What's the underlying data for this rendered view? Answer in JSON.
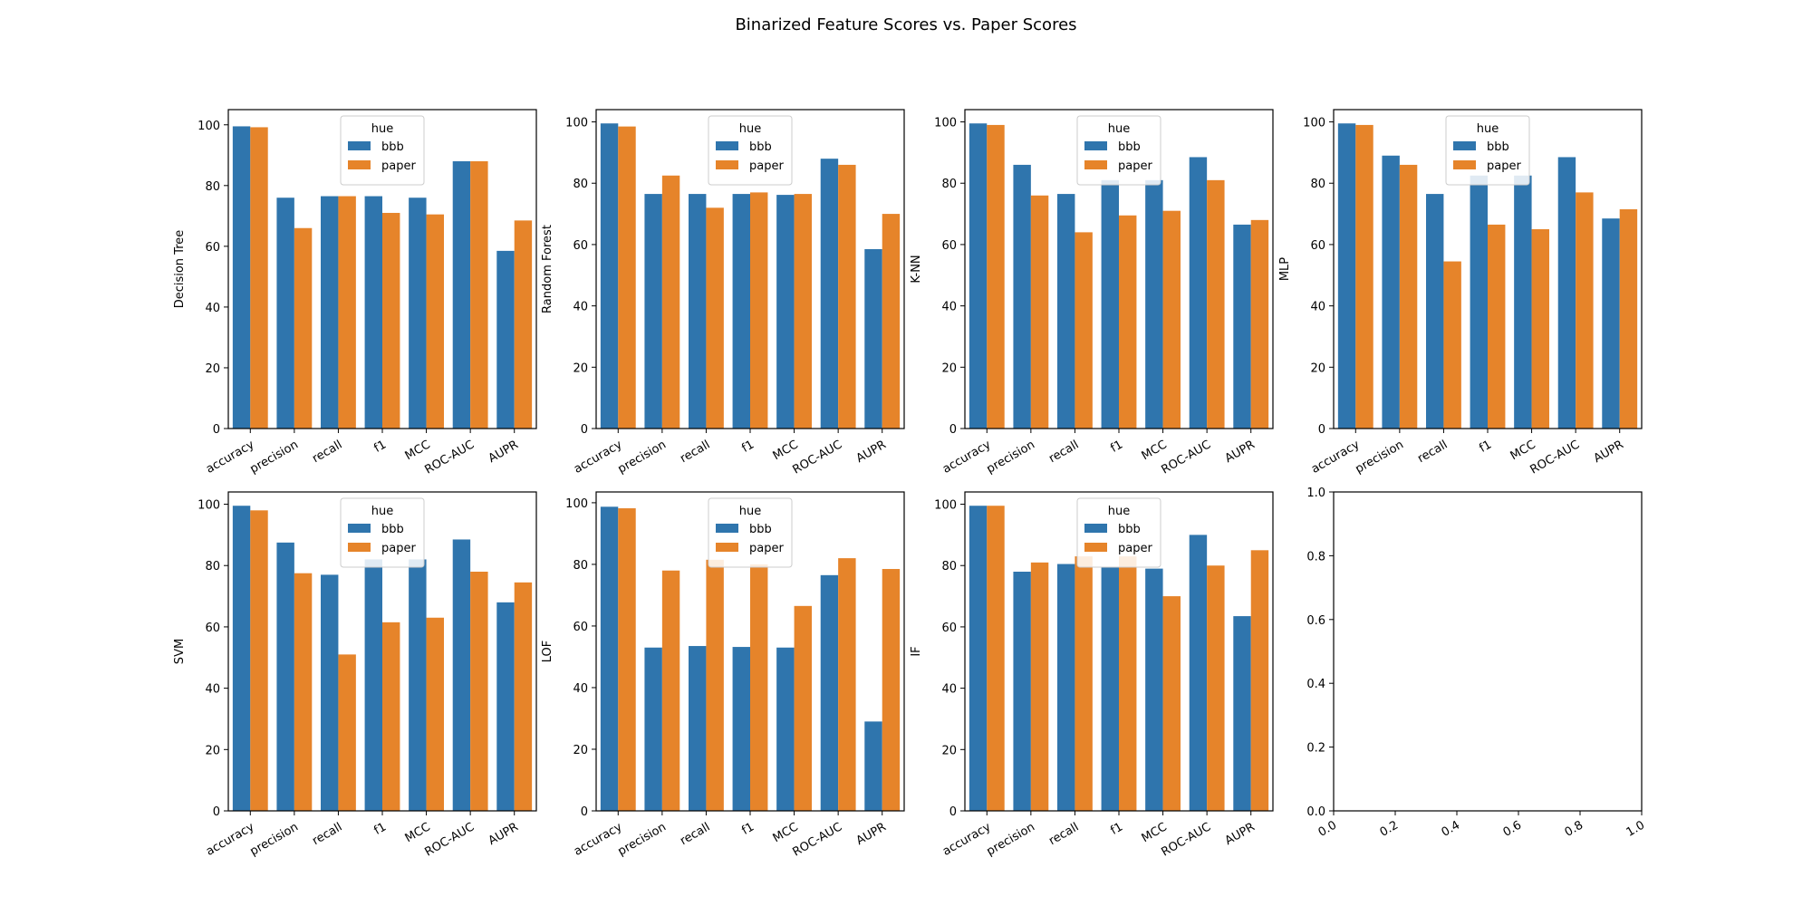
{
  "figure": {
    "suptitle": "Binarized Feature Scores vs. Paper Scores"
  },
  "colors": {
    "bbb": "#2f75ad",
    "paper": "#e6842a",
    "axis": "#000000",
    "legend_border": "#cccccc"
  },
  "chart_data": [
    {
      "type": "bar",
      "ylabel": "Decision Tree",
      "categories": [
        "accuracy",
        "precision",
        "recall",
        "f1",
        "MCC",
        "ROC-AUC",
        "AUPR"
      ],
      "ylim": [
        0,
        105
      ],
      "yticks": [
        0,
        20,
        40,
        60,
        80,
        100
      ],
      "legend": {
        "title": "hue",
        "position": "upper center"
      },
      "series": [
        {
          "name": "bbb",
          "values": [
            99.5,
            76,
            76.5,
            76.5,
            76,
            88,
            58.5
          ]
        },
        {
          "name": "paper",
          "values": [
            99.2,
            66,
            76.5,
            71,
            70.5,
            88,
            68.5
          ]
        }
      ]
    },
    {
      "type": "bar",
      "ylabel": "Random Forest",
      "categories": [
        "accuracy",
        "precision",
        "recall",
        "f1",
        "MCC",
        "ROC-AUC",
        "AUPR"
      ],
      "ylim": [
        0,
        104
      ],
      "yticks": [
        0,
        20,
        40,
        60,
        80,
        100
      ],
      "legend": {
        "title": "hue",
        "position": "upper center"
      },
      "series": [
        {
          "name": "bbb",
          "values": [
            99.5,
            76.5,
            76.5,
            76.5,
            76.2,
            88,
            58.5
          ]
        },
        {
          "name": "paper",
          "values": [
            98.5,
            82.5,
            72,
            77,
            76.5,
            86,
            70
          ]
        }
      ]
    },
    {
      "type": "bar",
      "ylabel": "K-NN",
      "categories": [
        "accuracy",
        "precision",
        "recall",
        "f1",
        "MCC",
        "ROC-AUC",
        "AUPR"
      ],
      "ylim": [
        0,
        104
      ],
      "yticks": [
        0,
        20,
        40,
        60,
        80,
        100
      ],
      "legend": {
        "title": "hue",
        "position": "upper center"
      },
      "series": [
        {
          "name": "bbb",
          "values": [
            99.5,
            86,
            76.5,
            81,
            81,
            88.5,
            66.5
          ]
        },
        {
          "name": "paper",
          "values": [
            99,
            76,
            64,
            69.5,
            71,
            81,
            68
          ]
        }
      ]
    },
    {
      "type": "bar",
      "ylabel": "MLP",
      "categories": [
        "accuracy",
        "precision",
        "recall",
        "f1",
        "MCC",
        "ROC-AUC",
        "AUPR"
      ],
      "ylim": [
        0,
        104
      ],
      "yticks": [
        0,
        20,
        40,
        60,
        80,
        100
      ],
      "legend": {
        "title": "hue",
        "position": "upper center"
      },
      "series": [
        {
          "name": "bbb",
          "values": [
            99.5,
            89,
            76.5,
            82.5,
            82.5,
            88.5,
            68.5
          ]
        },
        {
          "name": "paper",
          "values": [
            99,
            86,
            54.5,
            66.5,
            65,
            77,
            71.5
          ]
        }
      ]
    },
    {
      "type": "bar",
      "ylabel": "SVM",
      "categories": [
        "accuracy",
        "precision",
        "recall",
        "f1",
        "MCC",
        "ROC-AUC",
        "AUPR"
      ],
      "ylim": [
        0,
        104
      ],
      "yticks": [
        0,
        20,
        40,
        60,
        80,
        100
      ],
      "legend": {
        "title": "hue",
        "position": "upper center"
      },
      "series": [
        {
          "name": "bbb",
          "values": [
            99.5,
            87.5,
            77,
            82,
            82,
            88.5,
            68
          ]
        },
        {
          "name": "paper",
          "values": [
            98,
            77.5,
            51,
            61.5,
            63,
            78,
            74.5
          ]
        }
      ]
    },
    {
      "type": "bar",
      "ylabel": "LOF",
      "categories": [
        "accuracy",
        "precision",
        "recall",
        "f1",
        "MCC",
        "ROC-AUC",
        "AUPR"
      ],
      "ylim": [
        0,
        103.5
      ],
      "yticks": [
        0,
        20,
        40,
        60,
        80,
        100
      ],
      "legend": {
        "title": "hue",
        "position": "upper center"
      },
      "series": [
        {
          "name": "bbb",
          "values": [
            98.7,
            53,
            53.5,
            53.2,
            53,
            76.5,
            29
          ]
        },
        {
          "name": "paper",
          "values": [
            98.2,
            78,
            81.5,
            80,
            66.5,
            82,
            78.5
          ]
        }
      ]
    },
    {
      "type": "bar",
      "ylabel": "IF",
      "categories": [
        "accuracy",
        "precision",
        "recall",
        "f1",
        "MCC",
        "ROC-AUC",
        "AUPR"
      ],
      "ylim": [
        0,
        104
      ],
      "yticks": [
        0,
        20,
        40,
        60,
        80,
        100
      ],
      "legend": {
        "title": "hue",
        "position": "upper center"
      },
      "series": [
        {
          "name": "bbb",
          "values": [
            99.5,
            78,
            80.5,
            79.5,
            79,
            90,
            63.5
          ]
        },
        {
          "name": "paper",
          "values": [
            99.5,
            81,
            83,
            83,
            70,
            80,
            85
          ]
        }
      ]
    },
    {
      "type": "bar",
      "ylabel": "",
      "empty": true,
      "categories": [],
      "ylim": [
        0,
        1
      ],
      "yticks": [
        "0.0",
        "0.2",
        "0.4",
        "0.6",
        "0.8",
        "1.0"
      ],
      "xticks": [
        "0.0",
        "0.2",
        "0.4",
        "0.6",
        "0.8",
        "1.0"
      ],
      "series": []
    }
  ]
}
